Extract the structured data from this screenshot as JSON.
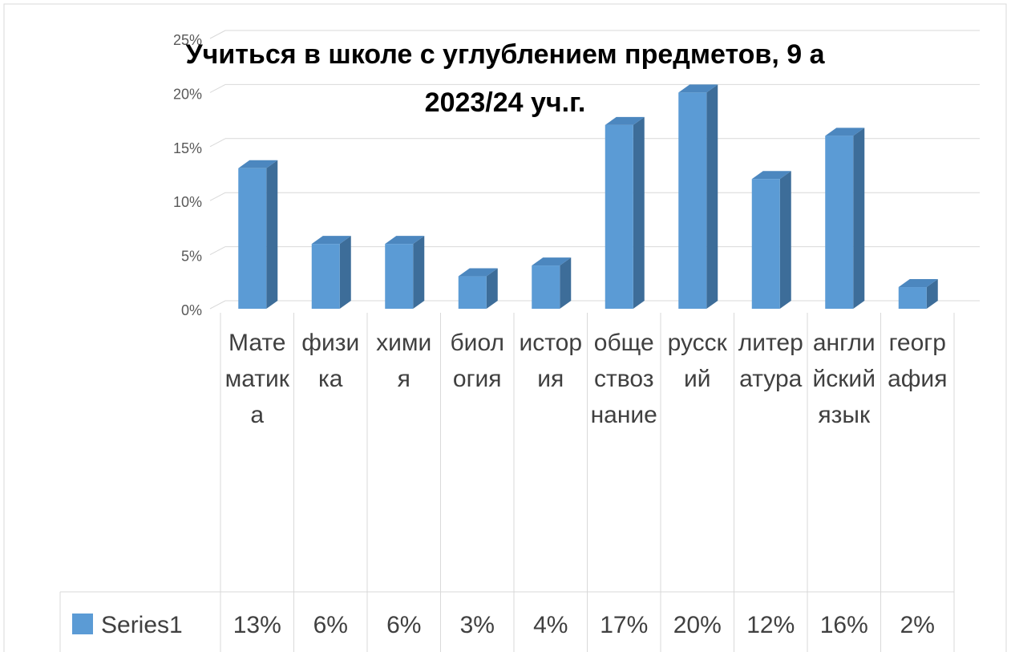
{
  "chart_data": {
    "type": "bar3d",
    "title": "Учиться в школе с углублением предметов, 9 а 2023/24 уч.г.",
    "categories": [
      "Математика",
      "физика",
      "химия",
      "биология",
      "история",
      "обществознание",
      "русский",
      "литература",
      "английский язык",
      "география"
    ],
    "series": [
      {
        "name": "Series1",
        "color": "#5b9bd5",
        "values": [
          13,
          6,
          6,
          3,
          4,
          17,
          20,
          12,
          16,
          2
        ],
        "value_labels": [
          "13%",
          "6%",
          "6%",
          "3%",
          "4%",
          "17%",
          "20%",
          "12%",
          "16%",
          "2%"
        ]
      }
    ],
    "ylim": [
      0,
      25
    ],
    "yticks": [
      {
        "value": 0,
        "label": "0%"
      },
      {
        "value": 5,
        "label": "5%"
      },
      {
        "value": 10,
        "label": "10%"
      },
      {
        "value": 15,
        "label": "15%"
      },
      {
        "value": 20,
        "label": "20%"
      },
      {
        "value": 25,
        "label": "25%"
      }
    ],
    "grid": true,
    "data_table": true
  }
}
